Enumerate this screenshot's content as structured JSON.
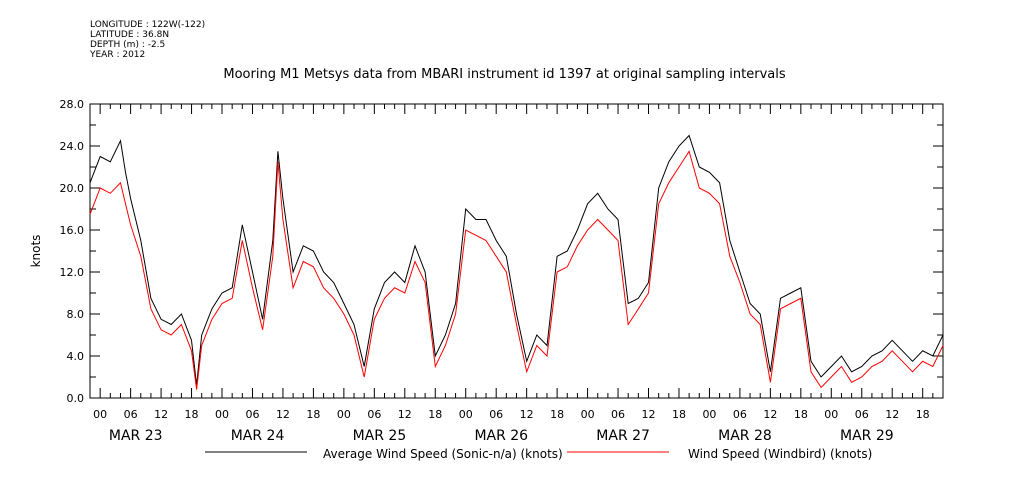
{
  "meta": {
    "longitude": "LONGITUDE : 122W(-122)",
    "latitude": "LATITUDE : 36.8N",
    "depth": "DEPTH (m) : -2.5",
    "year": "YEAR : 2012"
  },
  "colors": {
    "series1": "#000000",
    "series2": "#ff0000"
  },
  "chart_data": {
    "type": "line",
    "title": "Mooring M1 Metsys data from MBARI instrument id 1397 at original sampling intervals",
    "ylabel": "knots",
    "xlabel": "",
    "ylim": [
      0,
      28
    ],
    "yticks": [
      "0.0",
      "4.0",
      "8.0",
      "12.0",
      "16.0",
      "20.0",
      "24.0",
      "28.0"
    ],
    "xlim_hours": [
      -2,
      166
    ],
    "hour_ticks": [
      "00",
      "06",
      "12",
      "18"
    ],
    "days": [
      "MAR 23",
      "MAR 24",
      "MAR 25",
      "MAR 26",
      "MAR 27",
      "MAR 28",
      "MAR 29"
    ],
    "grid": false,
    "legend_position": "bottom",
    "series": [
      {
        "name": "Average Wind Speed (Sonic-n/a) (knots)",
        "color": "#000000",
        "x_hours": [
          -2,
          0,
          2,
          4,
          5,
          6,
          8,
          10,
          12,
          14,
          16,
          18,
          19,
          20,
          22,
          24,
          26,
          28,
          30,
          32,
          34,
          35,
          36,
          38,
          40,
          42,
          44,
          46,
          48,
          50,
          52,
          54,
          56,
          58,
          60,
          62,
          64,
          66,
          68,
          70,
          72,
          74,
          76,
          78,
          80,
          82,
          84,
          86,
          88,
          90,
          92,
          94,
          96,
          98,
          100,
          102,
          104,
          106,
          108,
          110,
          112,
          114,
          116,
          118,
          120,
          122,
          124,
          126,
          128,
          130,
          132,
          134,
          136,
          138,
          140,
          142,
          144,
          146,
          148,
          150,
          152,
          154,
          156,
          158,
          160,
          162,
          164,
          166
        ],
        "values": [
          20.5,
          23.0,
          22.5,
          24.5,
          21.5,
          19.0,
          15.0,
          9.5,
          7.5,
          7.0,
          8.0,
          5.5,
          1.2,
          6.0,
          8.5,
          10.0,
          10.5,
          16.5,
          12.0,
          7.5,
          15.0,
          23.5,
          19.0,
          12.0,
          14.5,
          14.0,
          12.0,
          11.0,
          9.0,
          7.0,
          3.0,
          8.5,
          11.0,
          12.0,
          11.0,
          14.5,
          12.0,
          4.0,
          6.0,
          9.0,
          18.0,
          17.0,
          17.0,
          15.0,
          13.5,
          8.0,
          3.5,
          6.0,
          5.0,
          13.5,
          14.0,
          16.0,
          18.5,
          19.5,
          18.0,
          17.0,
          9.0,
          9.5,
          11.0,
          20.0,
          22.5,
          24.0,
          25.0,
          22.0,
          21.5,
          20.5,
          15.0,
          12.0,
          9.0,
          8.0,
          2.5,
          9.5,
          10.0,
          10.5,
          3.5,
          2.0,
          3.0,
          4.0,
          2.5,
          3.0,
          4.0,
          4.5,
          5.5,
          4.5,
          3.5,
          4.5,
          4.0,
          6.0
        ]
      },
      {
        "name": "Wind Speed (Windbird) (knots)",
        "color": "#ff0000",
        "x_hours": [
          -2,
          0,
          2,
          4,
          5,
          6,
          8,
          10,
          12,
          14,
          16,
          18,
          19,
          20,
          22,
          24,
          26,
          28,
          30,
          32,
          34,
          35,
          36,
          38,
          40,
          42,
          44,
          46,
          48,
          50,
          52,
          54,
          56,
          58,
          60,
          62,
          64,
          66,
          68,
          70,
          72,
          74,
          76,
          78,
          80,
          82,
          84,
          86,
          88,
          90,
          92,
          94,
          96,
          98,
          100,
          102,
          104,
          106,
          108,
          110,
          112,
          114,
          116,
          118,
          120,
          122,
          124,
          126,
          128,
          130,
          132,
          134,
          136,
          138,
          140,
          142,
          144,
          146,
          148,
          150,
          152,
          154,
          156,
          158,
          160,
          162,
          164,
          166
        ],
        "values": [
          17.5,
          20.0,
          19.5,
          20.5,
          18.5,
          16.5,
          13.5,
          8.5,
          6.5,
          6.0,
          7.0,
          4.5,
          0.8,
          5.0,
          7.5,
          9.0,
          9.5,
          15.0,
          10.5,
          6.5,
          13.5,
          22.5,
          17.0,
          10.5,
          13.0,
          12.5,
          10.5,
          9.5,
          8.0,
          6.0,
          2.0,
          7.5,
          9.5,
          10.5,
          10.0,
          13.0,
          11.0,
          3.0,
          5.0,
          8.0,
          16.0,
          15.5,
          15.0,
          13.5,
          12.0,
          7.0,
          2.5,
          5.0,
          4.0,
          12.0,
          12.5,
          14.5,
          16.0,
          17.0,
          16.0,
          15.0,
          7.0,
          8.5,
          10.0,
          18.5,
          20.5,
          22.0,
          23.5,
          20.0,
          19.5,
          18.5,
          13.5,
          11.0,
          8.0,
          7.0,
          1.5,
          8.5,
          9.0,
          9.5,
          2.5,
          1.0,
          2.0,
          3.0,
          1.5,
          2.0,
          3.0,
          3.5,
          4.5,
          3.5,
          2.5,
          3.5,
          3.0,
          5.0
        ]
      }
    ]
  }
}
